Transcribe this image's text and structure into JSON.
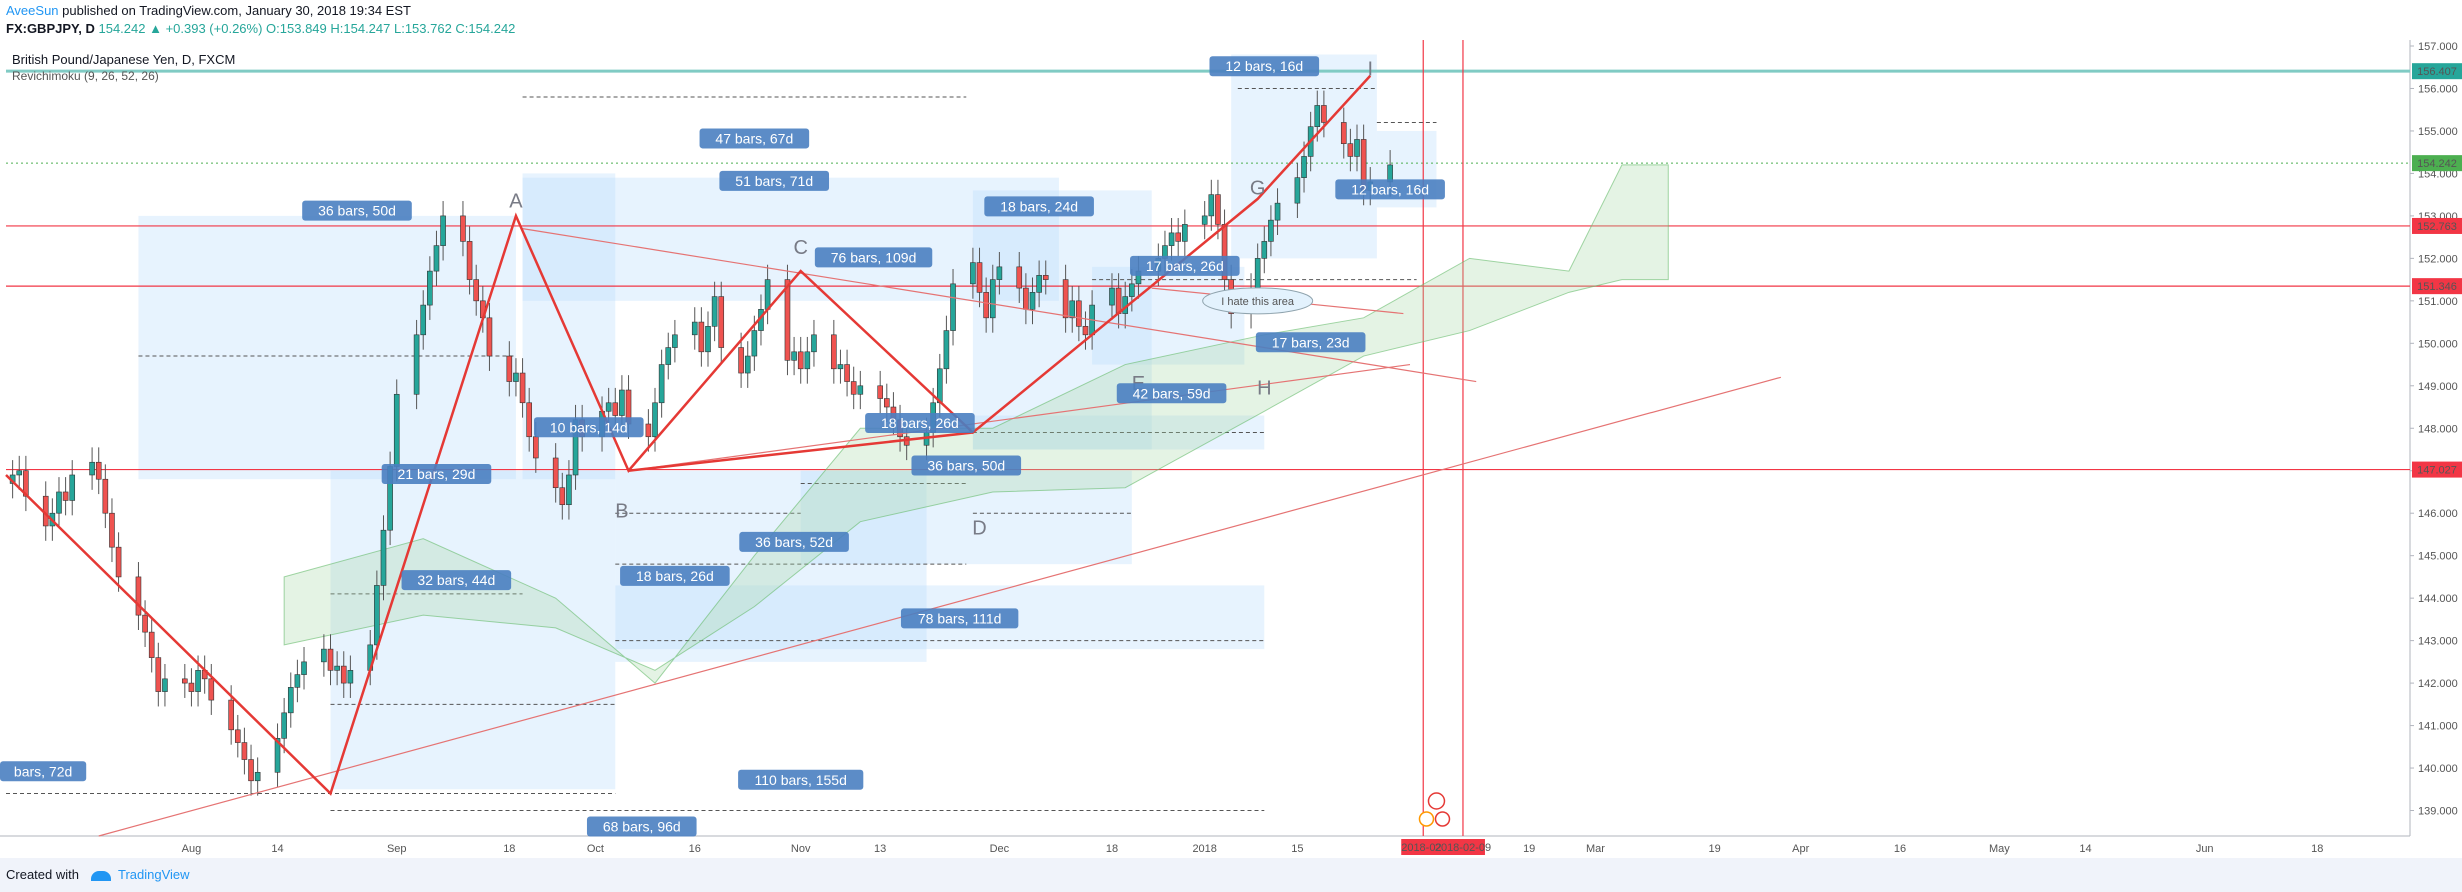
{
  "header": {
    "author": "AveeSun",
    "published": " published on TradingView.com, January 30, 2018 19:34 EST",
    "symbol": "FX:GBPJPY, D",
    "change": "154.242 ▲ +0.393 (+0.26%)",
    "ohlc": "O:153.849 H:154.247 L:153.762 C:154.242"
  },
  "footer": {
    "created_with": "Created with",
    "brand": "TradingView"
  },
  "colors": {
    "bull": "#26a69a",
    "bear": "#ef5350",
    "accent": "#2962ff",
    "trend": "#e53935",
    "box": "#bbdefb",
    "label": "#4a7fc1"
  },
  "chart_data": {
    "type": "candlestick",
    "title": "British Pound/Japanese Yen, D, FXCM",
    "indicator": "Revichimoku (9, 26, 52, 26)",
    "y_range": [
      138.4,
      157.0
    ],
    "y_ticks": [
      "157.000",
      "156.000",
      "155.000",
      "154.000",
      "153.000",
      "152.000",
      "151.000",
      "150.000",
      "149.000",
      "148.000",
      "147.000",
      "146.000",
      "145.000",
      "144.000",
      "143.000",
      "142.000",
      "141.000",
      "140.000",
      "139.000"
    ],
    "x_labels": [
      {
        "d": "2017-08-01",
        "t": "Aug"
      },
      {
        "d": "2017-08-14",
        "t": "14"
      },
      {
        "d": "2017-09-01",
        "t": "Sep"
      },
      {
        "d": "2017-09-18",
        "t": "18"
      },
      {
        "d": "2017-10-01",
        "t": "Oct"
      },
      {
        "d": "2017-10-16",
        "t": "16"
      },
      {
        "d": "2017-11-01",
        "t": "Nov"
      },
      {
        "d": "2017-11-13",
        "t": "13"
      },
      {
        "d": "2017-12-01",
        "t": "Dec"
      },
      {
        "d": "2017-12-18",
        "t": "18"
      },
      {
        "d": "2018-01-01",
        "t": "2018"
      },
      {
        "d": "2018-01-15",
        "t": "15"
      },
      {
        "d": "2018-02-19",
        "t": "19"
      },
      {
        "d": "2018-03-01",
        "t": "Mar"
      },
      {
        "d": "2018-03-19",
        "t": "19"
      },
      {
        "d": "2018-04-01",
        "t": "Apr"
      },
      {
        "d": "2018-04-16",
        "t": "16"
      },
      {
        "d": "2018-05-01",
        "t": "May"
      },
      {
        "d": "2018-05-14",
        "t": "14"
      },
      {
        "d": "2018-06-01",
        "t": "Jun"
      },
      {
        "d": "2018-06-18",
        "t": "18"
      }
    ],
    "x_date_range": [
      "2017-07-04",
      "2018-07-02"
    ],
    "date_markers": [
      {
        "d": "2018-02-03",
        "t": "2018-02-"
      },
      {
        "d": "2018-02-09",
        "t": "2018-02-09"
      }
    ],
    "price_marks": [
      {
        "v": 156.407,
        "t": "156.407",
        "color": "#26a69a"
      },
      {
        "v": 154.242,
        "t": "154.242",
        "color": "#4caf50"
      },
      {
        "v": 152.763,
        "t": "152.763",
        "color": "#f23645"
      },
      {
        "v": 151.346,
        "t": "151.346",
        "color": "#f23645"
      },
      {
        "v": 147.027,
        "t": "147.027",
        "color": "#f23645"
      }
    ],
    "points": [
      {
        "t": "A",
        "d": "2017-09-19",
        "v": 153.2
      },
      {
        "t": "B",
        "d": "2017-10-05",
        "v": 145.9
      },
      {
        "t": "C",
        "d": "2017-11-01",
        "v": 152.1
      },
      {
        "t": "D",
        "d": "2017-11-28",
        "v": 145.5
      },
      {
        "t": "E",
        "d": "2017-12-22",
        "v": 148.9
      },
      {
        "t": "G",
        "d": "2018-01-09",
        "v": 153.5
      },
      {
        "t": "H",
        "d": "2018-01-10",
        "v": 148.8
      },
      {
        "t": "I",
        "d": "2018-01-26",
        "v": 156.3
      }
    ],
    "annotations": [
      {
        "t": "12 bars, 16d",
        "d": "2018-01-10",
        "v": 156.5
      },
      {
        "t": "47 bars, 67d",
        "d": "2017-10-25",
        "v": 154.8
      },
      {
        "t": "51 bars, 71d",
        "d": "2017-10-28",
        "v": 153.8
      },
      {
        "t": "36 bars, 50d",
        "d": "2017-08-26",
        "v": 153.1
      },
      {
        "t": "18 bars, 24d",
        "d": "2017-12-07",
        "v": 153.2
      },
      {
        "t": "76 bars, 109d",
        "d": "2017-11-12",
        "v": 152.0
      },
      {
        "t": "17 bars, 26d",
        "d": "2017-12-29",
        "v": 151.8
      },
      {
        "t": "12 bars, 16d",
        "d": "2018-01-29",
        "v": 153.6
      },
      {
        "t": "17 bars, 23d",
        "d": "2018-01-17",
        "v": 150.0
      },
      {
        "t": "42 bars, 59d",
        "d": "2017-12-27",
        "v": 148.8
      },
      {
        "t": "18 bars, 26d",
        "d": "2017-11-19",
        "v": 148.1
      },
      {
        "t": "10 bars, 14d",
        "d": "2017-09-30",
        "v": 148.0
      },
      {
        "t": "21 bars, 29d",
        "d": "2017-09-07",
        "v": 146.9
      },
      {
        "t": "36 bars, 50d",
        "d": "2017-11-26",
        "v": 147.1
      },
      {
        "t": "36 bars, 52d",
        "d": "2017-10-31",
        "v": 145.3
      },
      {
        "t": "18 bars, 26d",
        "d": "2017-10-13",
        "v": 144.5
      },
      {
        "t": "32 bars, 44d",
        "d": "2017-09-10",
        "v": 144.4
      },
      {
        "t": "78 bars, 111d",
        "d": "2017-11-25",
        "v": 143.5
      },
      {
        "t": "110 bars, 155d",
        "d": "2017-11-01",
        "v": 139.7
      },
      {
        "t": "68 bars, 96d",
        "d": "2017-10-08",
        "v": 138.6
      },
      {
        "t": "bars, 72d",
        "d": "2017-07-04",
        "v": 139.9
      }
    ],
    "note": "I hate this area",
    "prices": {
      "start": "2017-07-05",
      "close": [
        146.9,
        147.0,
        146.4,
        145.7,
        146.0,
        146.5,
        146.3,
        146.9,
        147.2,
        146.8,
        146.0,
        145.2,
        144.5,
        143.6,
        143.2,
        142.6,
        141.8,
        142.1,
        142.0,
        141.8,
        142.3,
        142.1,
        141.6,
        140.9,
        140.6,
        140.2,
        139.7,
        139.9,
        140.7,
        141.3,
        141.9,
        142.2,
        142.5,
        142.8,
        142.3,
        142.4,
        142.0,
        142.3,
        142.9,
        144.3,
        145.6,
        147.1,
        148.8,
        150.2,
        150.9,
        151.7,
        152.3,
        153.0,
        152.4,
        151.5,
        151.0,
        150.6,
        149.7,
        149.1,
        149.3,
        148.6,
        147.8,
        147.3,
        146.6,
        146.2,
        146.9,
        148.2,
        147.8,
        148.4,
        148.6,
        148.3,
        148.9,
        148.1,
        147.8,
        148.6,
        149.5,
        149.9,
        150.2,
        150.5,
        149.8,
        150.4,
        151.1,
        149.9,
        149.3,
        149.7,
        150.3,
        150.8,
        151.5,
        149.6,
        149.8,
        149.4,
        149.8,
        150.2,
        149.4,
        149.5,
        149.1,
        148.8,
        149.0,
        148.7,
        148.5,
        148.2,
        147.8,
        147.6,
        147.9,
        148.6,
        149.4,
        150.3,
        151.4,
        151.9,
        151.2,
        150.6,
        151.5,
        151.8,
        151.3,
        150.8,
        151.2,
        151.6,
        151.5,
        150.6,
        151.0,
        150.4,
        150.2,
        150.9,
        151.3,
        150.7,
        151.1,
        151.4,
        151.7,
        152.0,
        152.3,
        152.6,
        152.4,
        152.8,
        153.0,
        153.5,
        152.8,
        151.5,
        150.7,
        151.3,
        152.0,
        152.4,
        152.9,
        153.3,
        153.9,
        154.4,
        155.1,
        155.6,
        155.2,
        154.7,
        154.4,
        154.8,
        153.6,
        153.8,
        154.2
      ]
    }
  }
}
